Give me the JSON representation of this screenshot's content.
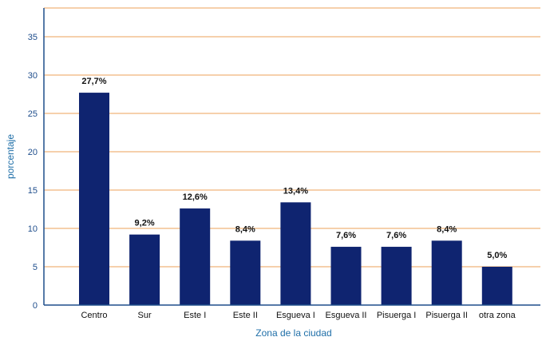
{
  "chart_data": {
    "type": "bar",
    "xlabel": "Zona de la ciudad",
    "ylabel": "porcentaje",
    "ylim": [
      0,
      35
    ],
    "yticks": [
      0,
      5,
      10,
      15,
      20,
      25,
      30,
      35
    ],
    "grid": true,
    "categories": [
      "Centro",
      "Sur",
      "Este I",
      "Este II",
      "Esgueva I",
      "Esgueva II",
      "Pisuerga I",
      "Pisuerga II",
      "otra zona"
    ],
    "values": [
      27.7,
      9.2,
      12.6,
      8.4,
      13.4,
      7.6,
      7.6,
      8.4,
      5.0
    ],
    "data_labels": [
      "27,7%",
      "9,2%",
      "12,6%",
      "8,4%",
      "13,4%",
      "7,6%",
      "7,6%",
      "8,4%",
      "5,0%"
    ],
    "colors": {
      "bar": "#0f2470",
      "grid": "#f0b57a",
      "axis": "#1f4e8c"
    }
  }
}
